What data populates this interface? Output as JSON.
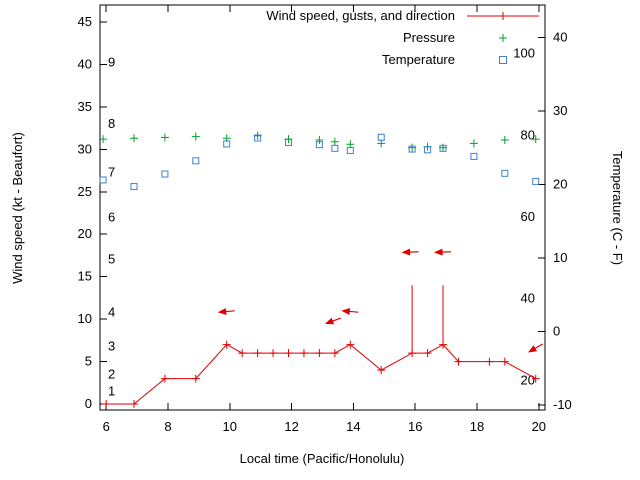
{
  "chart_data": {
    "type": "line",
    "title": "",
    "xlabel": "Local time (Pacific/Honolulu)",
    "y_left_label": "Wind speed (kt - Beaufort)",
    "y_right_label": "Temperature (C - F)",
    "x_range": [
      5.8,
      20.2
    ],
    "y_left_range": [
      -0.7,
      47
    ],
    "y_right_range": [
      -10.7,
      44.4
    ],
    "x_ticks": [
      6,
      8,
      10,
      12,
      14,
      16,
      18,
      20
    ],
    "y_left_ticks": [
      0,
      5,
      10,
      15,
      20,
      25,
      30,
      35,
      40,
      45
    ],
    "y_right_ticks": [
      -10,
      0,
      10,
      20,
      30,
      40
    ],
    "beaufort_scale": [
      {
        "label": "1",
        "kt": 1.5
      },
      {
        "label": "2",
        "kt": 3.5
      },
      {
        "label": "3",
        "kt": 6.8
      },
      {
        "label": "4",
        "kt": 10.8
      },
      {
        "label": "5",
        "kt": 17.0
      },
      {
        "label": "6",
        "kt": 22.0
      },
      {
        "label": "7",
        "kt": 27.3
      },
      {
        "label": "8",
        "kt": 33.0
      },
      {
        "label": "9",
        "kt": 40.2
      }
    ],
    "fahrenheit_scale": [
      20,
      40,
      60,
      80,
      100
    ],
    "colors": {
      "wind": "#e00000",
      "pressure": "#00a030",
      "temperature": "#4080d0",
      "axis": "#000000",
      "background": "#ffffff"
    },
    "grid": false,
    "legend": {
      "position": "top-inside",
      "entries": [
        {
          "label": "Wind speed, gusts, and direction",
          "marker": "line-plus",
          "series": "wind"
        },
        {
          "label": "Pressure",
          "marker": "plus",
          "series": "pressure"
        },
        {
          "label": "Temperature",
          "marker": "square",
          "series": "temperature"
        }
      ]
    },
    "series": {
      "wind": {
        "axis": "left",
        "units": "kt",
        "t": [
          6.0,
          6.9,
          7.9,
          8.9,
          9.9,
          10.4,
          10.9,
          11.4,
          11.9,
          12.4,
          12.9,
          13.4,
          13.9,
          14.9,
          15.9,
          16.4,
          16.9,
          17.4,
          18.4,
          18.9,
          19.9
        ],
        "kt": [
          0,
          0,
          3,
          3,
          7,
          6,
          6,
          6,
          6,
          6,
          6,
          6,
          7,
          4,
          6,
          6,
          7,
          5,
          5,
          5,
          3
        ]
      },
      "gusts": [
        {
          "t": 15.9,
          "from": 6,
          "to": 14
        },
        {
          "t": 16.9,
          "from": 7,
          "to": 14
        }
      ],
      "direction_arrows": [
        {
          "t": 9.9,
          "kt": 10.9,
          "angle": 175
        },
        {
          "t": 13.35,
          "kt": 9.8,
          "angle": 160
        },
        {
          "t": 13.9,
          "kt": 10.9,
          "angle": 185
        },
        {
          "t": 15.85,
          "kt": 17.9,
          "angle": 178
        },
        {
          "t": 16.9,
          "kt": 17.9,
          "angle": 178
        },
        {
          "t": 19.9,
          "kt": 6.6,
          "angle": 150
        }
      ],
      "pressure": {
        "axis": "left-plot-position",
        "t": [
          5.9,
          6.9,
          7.9,
          8.9,
          9.9,
          10.9,
          11.9,
          12.9,
          13.4,
          13.9,
          14.9,
          15.9,
          16.4,
          16.9,
          17.9,
          18.9,
          19.9
        ],
        "y": [
          31.2,
          31.3,
          31.4,
          31.5,
          31.3,
          31.6,
          31.2,
          31.1,
          30.9,
          30.6,
          30.7,
          30.2,
          30.3,
          30.2,
          30.7,
          31.1,
          31.2
        ]
      },
      "temperature": {
        "axis": "right",
        "units": "C",
        "t": [
          5.9,
          6.9,
          7.9,
          8.9,
          9.9,
          10.9,
          11.9,
          12.9,
          13.4,
          13.9,
          14.9,
          15.9,
          16.4,
          16.9,
          17.9,
          18.9,
          19.9
        ],
        "c": [
          20.6,
          19.7,
          21.4,
          23.2,
          25.5,
          26.3,
          25.7,
          25.4,
          24.9,
          24.6,
          26.4,
          24.8,
          24.7,
          24.9,
          23.8,
          21.5,
          20.4
        ]
      }
    }
  }
}
